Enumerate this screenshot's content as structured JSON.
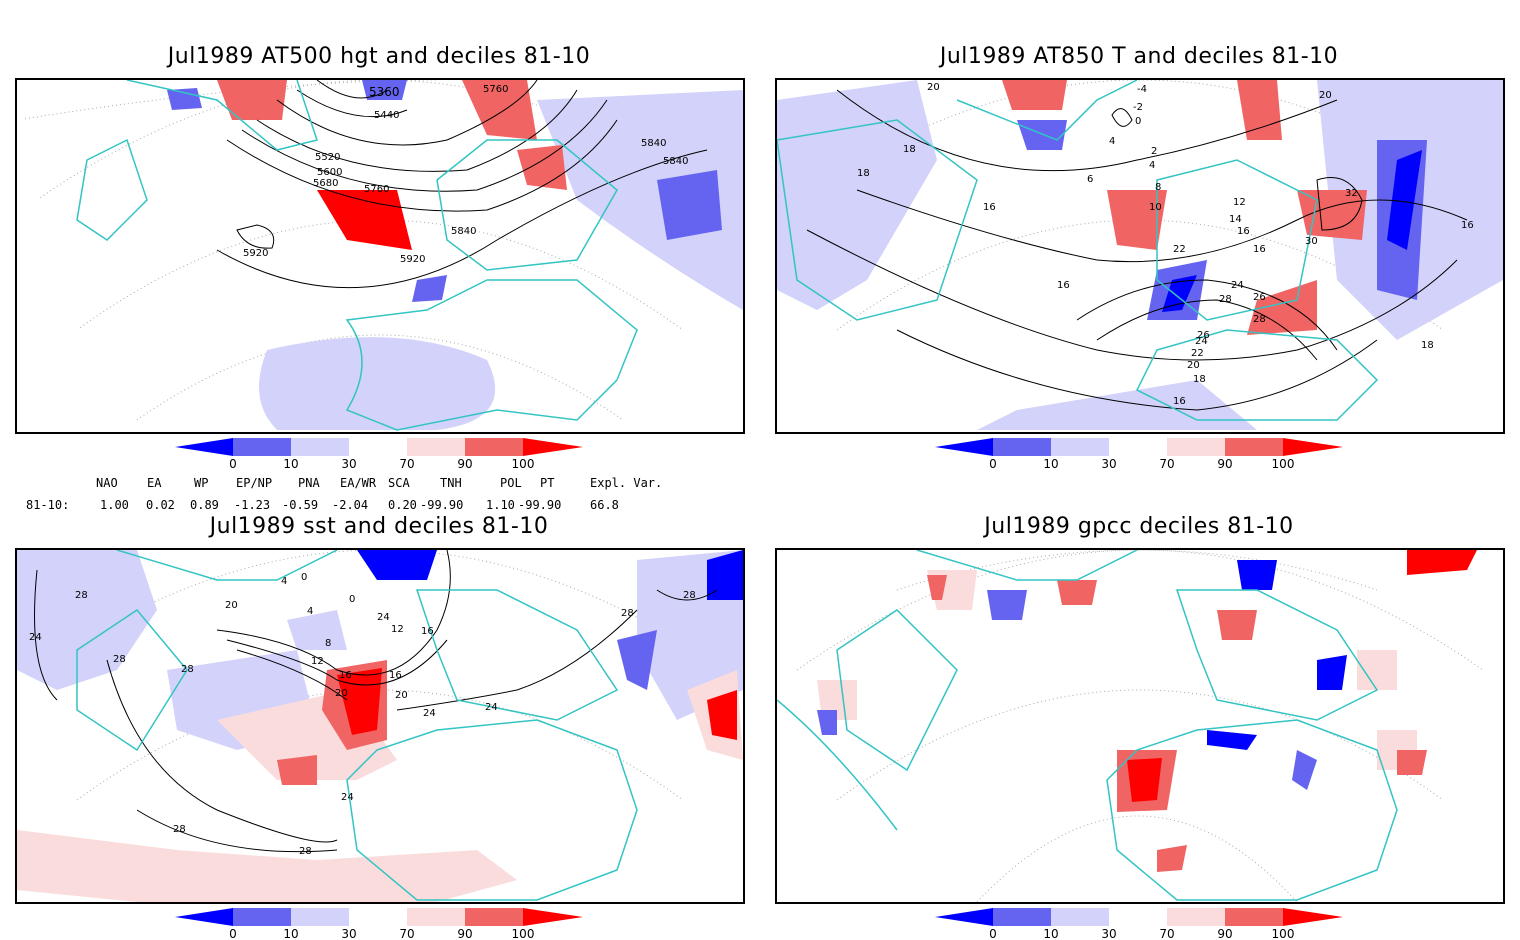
{
  "panels": [
    {
      "title": "Jul1989 AT500 hgt and deciles 81-10",
      "contour_labels": [
        "5360",
        "5440",
        "5520",
        "5600",
        "5680",
        "5760",
        "5760",
        "5840",
        "5840",
        "5840",
        "5920",
        "5920"
      ]
    },
    {
      "title": "Jul1989 AT850 T and deciles 81-10",
      "contour_labels": [
        "20",
        "-4",
        "-2",
        "0",
        "4",
        "2",
        "4",
        "6",
        "8",
        "10",
        "12",
        "14",
        "16",
        "16",
        "16",
        "16",
        "18",
        "18",
        "18",
        "22",
        "20",
        "24",
        "26",
        "28",
        "28",
        "30",
        "32",
        "24",
        "22",
        "20",
        "18",
        "16",
        "16",
        "26"
      ]
    },
    {
      "title": "Jul1989 sst and deciles 81-10",
      "contour_labels": [
        "28",
        "24",
        "28",
        "28",
        "20",
        "12",
        "4",
        "0",
        "16",
        "24",
        "8",
        "12",
        "16",
        "20",
        "16",
        "20",
        "24",
        "24",
        "28",
        "28",
        "24",
        "28",
        "28",
        "0",
        "4"
      ]
    },
    {
      "title": "Jul1989 gpcc deciles 81-10",
      "contour_labels": []
    }
  ],
  "colorbar": {
    "ticks": [
      "0",
      "10",
      "30",
      "70",
      "90",
      "100"
    ],
    "colors": [
      "#0000ff",
      "#6464f0",
      "#d2d2fa",
      "#ffffff",
      "#fadcdc",
      "#f06464",
      "#ff0000"
    ]
  },
  "indices": {
    "headers": [
      "NAO",
      "EA",
      "WP",
      "EP/NP",
      "PNA",
      "EA/WR",
      "SCA",
      "TNH",
      "POL",
      "PT",
      "Expl. Var."
    ],
    "row_label": "81-10:",
    "values": [
      "1.00",
      "0.02",
      "0.89",
      "-1.23",
      "-0.59",
      "-2.04",
      "0.20",
      "-99.90",
      "1.10",
      "-99.90",
      "66.8"
    ]
  },
  "colors": {
    "coast": "#33c4c4",
    "grid": "#aaaaaa",
    "contour": "#000000"
  }
}
